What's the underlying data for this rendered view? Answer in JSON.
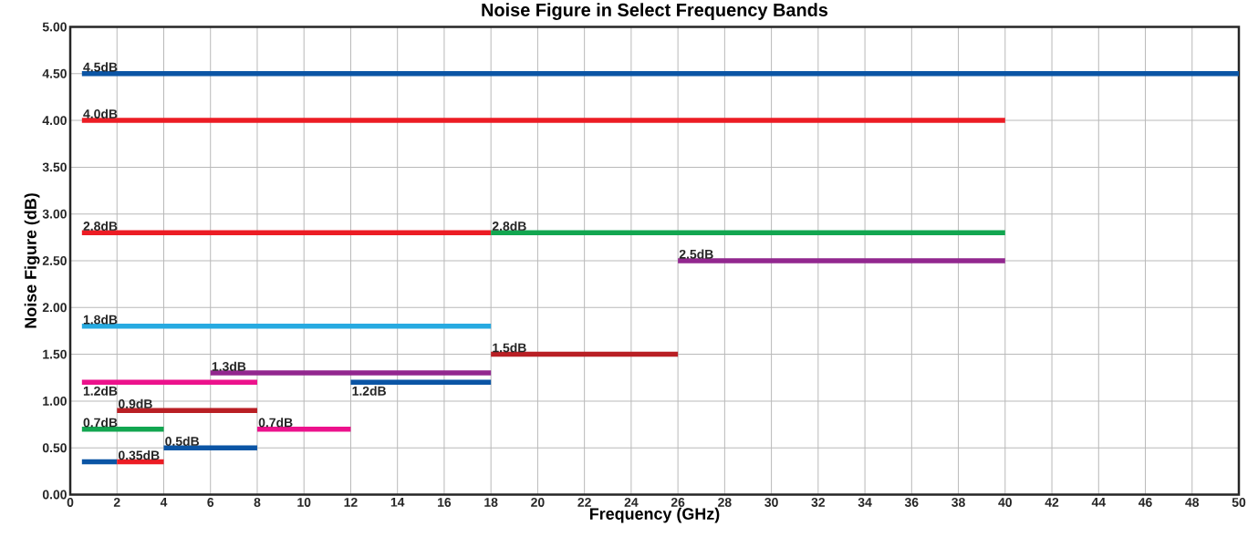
{
  "chart_data": {
    "type": "line",
    "title": "Noise Figure in Select Frequency Bands",
    "xlabel": "Frequency (GHz)",
    "ylabel": "Noise Figure (dB)",
    "xlim": [
      0,
      50
    ],
    "ylim": [
      0,
      5
    ],
    "xticks": [
      0,
      2,
      4,
      6,
      8,
      10,
      12,
      14,
      16,
      18,
      20,
      22,
      24,
      26,
      28,
      30,
      32,
      34,
      36,
      38,
      40,
      42,
      44,
      46,
      48,
      50
    ],
    "yticks": [
      {
        "value": 0,
        "label": "0.00"
      },
      {
        "value": 0.5,
        "label": "0.50"
      },
      {
        "value": 1,
        "label": "1.00"
      },
      {
        "value": 1.5,
        "label": "1.50"
      },
      {
        "value": 2,
        "label": "2.00"
      },
      {
        "value": 2.5,
        "label": "2.50"
      },
      {
        "value": 3,
        "label": "3.00"
      },
      {
        "value": 3.5,
        "label": "3.50"
      },
      {
        "value": 4,
        "label": "4.00"
      },
      {
        "value": 4.5,
        "label": "4.50"
      },
      {
        "value": 5,
        "label": "5.00"
      }
    ],
    "grid": true,
    "series": [
      {
        "color": "#0b55a5",
        "x": [
          0.5,
          50
        ],
        "values": [
          4.5,
          4.5
        ],
        "value_labels": [
          "4.5dB",
          null
        ]
      },
      {
        "color": "#ec1c24",
        "x": [
          0.5,
          40
        ],
        "values": [
          4.0,
          4.0
        ],
        "value_labels": [
          "4.0dB",
          null
        ]
      },
      {
        "color": "#ec1c24",
        "x": [
          0.5,
          18
        ],
        "values": [
          2.8,
          2.8
        ],
        "value_labels": [
          "2.8dB",
          null
        ]
      },
      {
        "color": "#12a650",
        "x": [
          18,
          40
        ],
        "values": [
          2.8,
          2.8
        ],
        "value_labels": [
          "2.8dB",
          null
        ]
      },
      {
        "color": "#92278f",
        "x": [
          26,
          40
        ],
        "values": [
          2.5,
          2.5
        ],
        "value_labels": [
          "2.5dB",
          null
        ]
      },
      {
        "color": "#27aae1",
        "x": [
          0.5,
          18
        ],
        "values": [
          1.8,
          1.8
        ],
        "value_labels": [
          "1.8dB",
          null
        ]
      },
      {
        "color": "#b91f24",
        "x": [
          18,
          26
        ],
        "values": [
          1.5,
          1.5
        ],
        "value_labels": [
          "1.5dB",
          null
        ]
      },
      {
        "color": "#92278f",
        "x": [
          6,
          18
        ],
        "values": [
          1.3,
          1.3
        ],
        "value_labels": [
          "1.3dB",
          null
        ]
      },
      {
        "color": "#ec128c",
        "x": [
          0.5,
          8
        ],
        "values": [
          1.2,
          1.2
        ],
        "value_labels": [
          "1.2dB",
          null
        ]
      },
      {
        "color": "#0b55a5",
        "x": [
          12,
          18
        ],
        "values": [
          1.2,
          1.2
        ],
        "value_labels": [
          "1.2dB",
          null
        ]
      },
      {
        "color": "#b91f24",
        "x": [
          2,
          8
        ],
        "values": [
          0.9,
          0.9
        ],
        "value_labels": [
          "0.9dB",
          null
        ]
      },
      {
        "color": "#12a650",
        "x": [
          0.5,
          4
        ],
        "values": [
          0.7,
          0.7
        ],
        "value_labels": [
          "0.7dB",
          null
        ]
      },
      {
        "color": "#ec128c",
        "x": [
          8,
          12
        ],
        "values": [
          0.7,
          0.7
        ],
        "value_labels": [
          "0.7dB",
          null
        ]
      },
      {
        "color": "#0b55a5",
        "x": [
          4,
          8
        ],
        "values": [
          0.5,
          0.5
        ],
        "value_labels": [
          "0.5dB",
          null
        ]
      },
      {
        "color": "#0b55a5",
        "x": [
          0.5,
          2
        ],
        "values": [
          0.35,
          0.35
        ]
      },
      {
        "color": "#ec1c24",
        "x": [
          2,
          4
        ],
        "values": [
          0.35,
          0.35
        ],
        "value_labels": [
          "0.35dB",
          null
        ]
      }
    ]
  }
}
